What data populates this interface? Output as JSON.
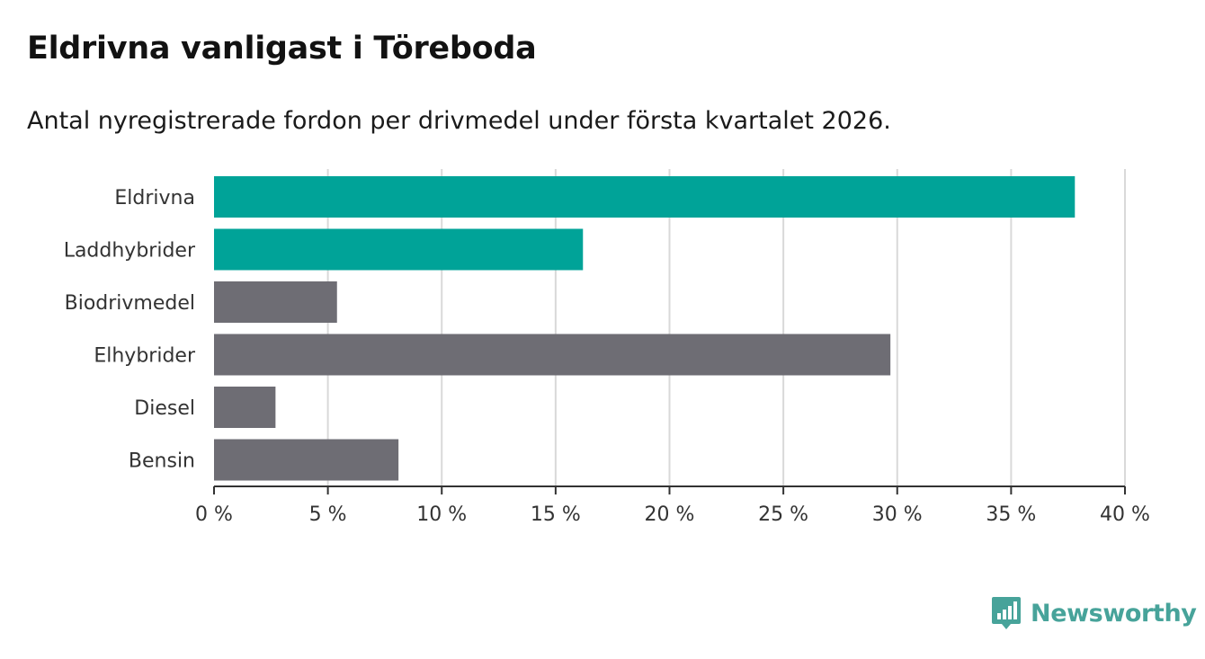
{
  "header": {
    "title": "Eldrivna vanligast i Töreboda",
    "subtitle": "Antal nyregistrerade fordon per drivmedel under första kvartalet 2026."
  },
  "brand": {
    "name": "Newsworthy",
    "icon": "bar-chart-icon",
    "color": "#47a39a"
  },
  "colors": {
    "highlight": "#00a398",
    "default": "#6e6d74",
    "grid": "#d9d9d9",
    "axis": "#333333"
  },
  "chart_data": {
    "type": "bar",
    "orientation": "horizontal",
    "title": "Eldrivna vanligast i Töreboda",
    "subtitle": "Antal nyregistrerade fordon per drivmedel under första kvartalet 2026.",
    "xlabel": "",
    "ylabel": "",
    "categories": [
      "Eldrivna",
      "Laddhybrider",
      "Biodrivmedel",
      "Elhybrider",
      "Diesel",
      "Bensin"
    ],
    "values": [
      37.8,
      16.2,
      5.4,
      29.7,
      2.7,
      8.1
    ],
    "highlighted": [
      true,
      true,
      false,
      false,
      false,
      false
    ],
    "xlim": [
      0,
      40
    ],
    "xticks": [
      0,
      5,
      10,
      15,
      20,
      25,
      30,
      35,
      40
    ],
    "tick_labels": [
      "0 %",
      "5 %",
      "10 %",
      "15 %",
      "20 %",
      "25 %",
      "30 %",
      "35 %",
      "40 %"
    ],
    "grid": true,
    "unit": "%"
  }
}
